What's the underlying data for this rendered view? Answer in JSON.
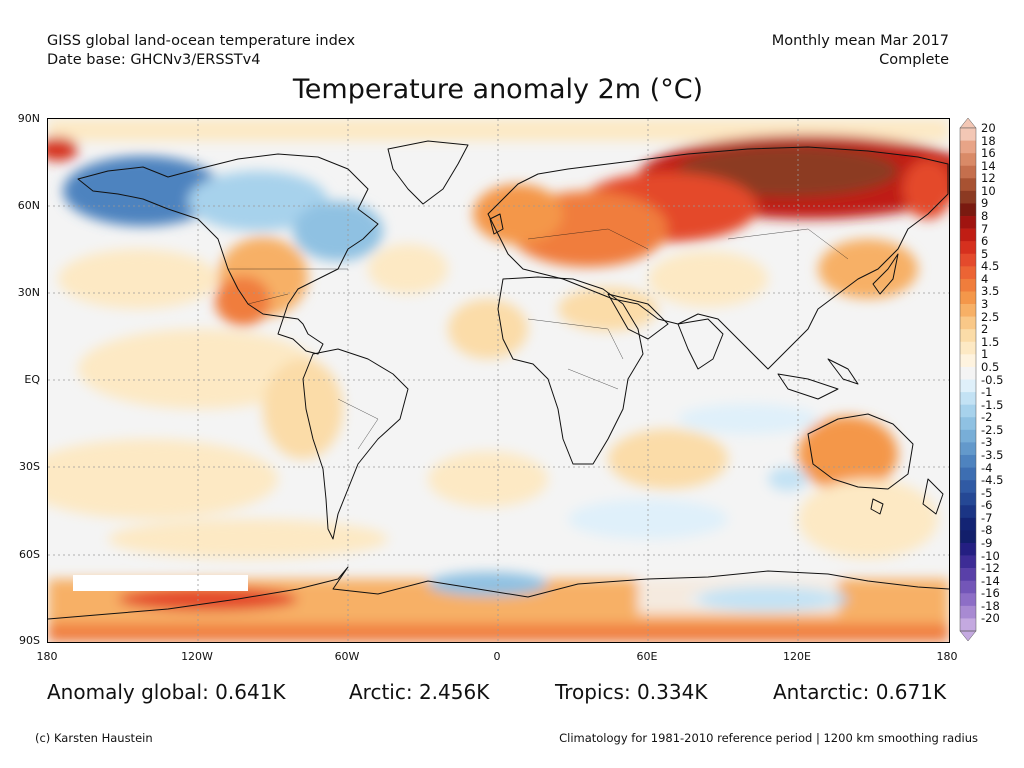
{
  "header": {
    "line1_left": "GISS global land-ocean temperature index",
    "line2_left": "Date base: GHCNv3/ERSSTv4",
    "line1_right": "Monthly mean Mar 2017",
    "line2_right": "Complete"
  },
  "title": "Temperature anomaly 2m (°C)",
  "axes": {
    "lat_labels": [
      "90N",
      "60N",
      "30N",
      "EQ",
      "30S",
      "60S",
      "90S"
    ],
    "lon_labels": [
      "180",
      "120W",
      "60W",
      "0",
      "60E",
      "120E",
      "180"
    ]
  },
  "colorbar": {
    "labels": [
      "20",
      "18",
      "16",
      "14",
      "12",
      "10",
      "9",
      "8",
      "7",
      "6",
      "5",
      "4.5",
      "4",
      "3.5",
      "3",
      "2.5",
      "2",
      "1.5",
      "1",
      "0.5",
      "-0.5",
      "-1",
      "-1.5",
      "-2",
      "-2.5",
      "-3",
      "-3.5",
      "-4",
      "-4.5",
      "-5",
      "-6",
      "-7",
      "-8",
      "-9",
      "-10",
      "-12",
      "-14",
      "-16",
      "-18",
      "-20"
    ],
    "colors": [
      "#f3c7b5",
      "#e8a487",
      "#d98a67",
      "#c56f4d",
      "#a85232",
      "#8c3a22",
      "#7a1a10",
      "#a01410",
      "#c01d14",
      "#d6301e",
      "#e44a2c",
      "#ec6434",
      "#f07d3c",
      "#f4974a",
      "#f7b066",
      "#f9c888",
      "#fbdca8",
      "#fde9c4",
      "#fef3df",
      "#f4f4f4",
      "#dff0fa",
      "#c3e2f4",
      "#a7d2ec",
      "#8fc1e2",
      "#78aed7",
      "#6399cb",
      "#4e83bf",
      "#3d6eb2",
      "#305aa4",
      "#254895",
      "#1b3585",
      "#132474",
      "#121f6b",
      "#241f82",
      "#3d2c96",
      "#5940a8",
      "#7356b8",
      "#8d6ec6",
      "#a88ad2",
      "#c4a9e0"
    ]
  },
  "stats": {
    "global": "Anomaly global: 0.641K",
    "arctic": "Arctic: 2.456K",
    "tropics": "Tropics: 0.334K",
    "antarctic": "Antarctic: 0.671K"
  },
  "footer": {
    "copyright": "(c) Karsten Haustein",
    "note": "Climatology for 1981-2010 reference period | 1200 km smoothing radius"
  }
}
